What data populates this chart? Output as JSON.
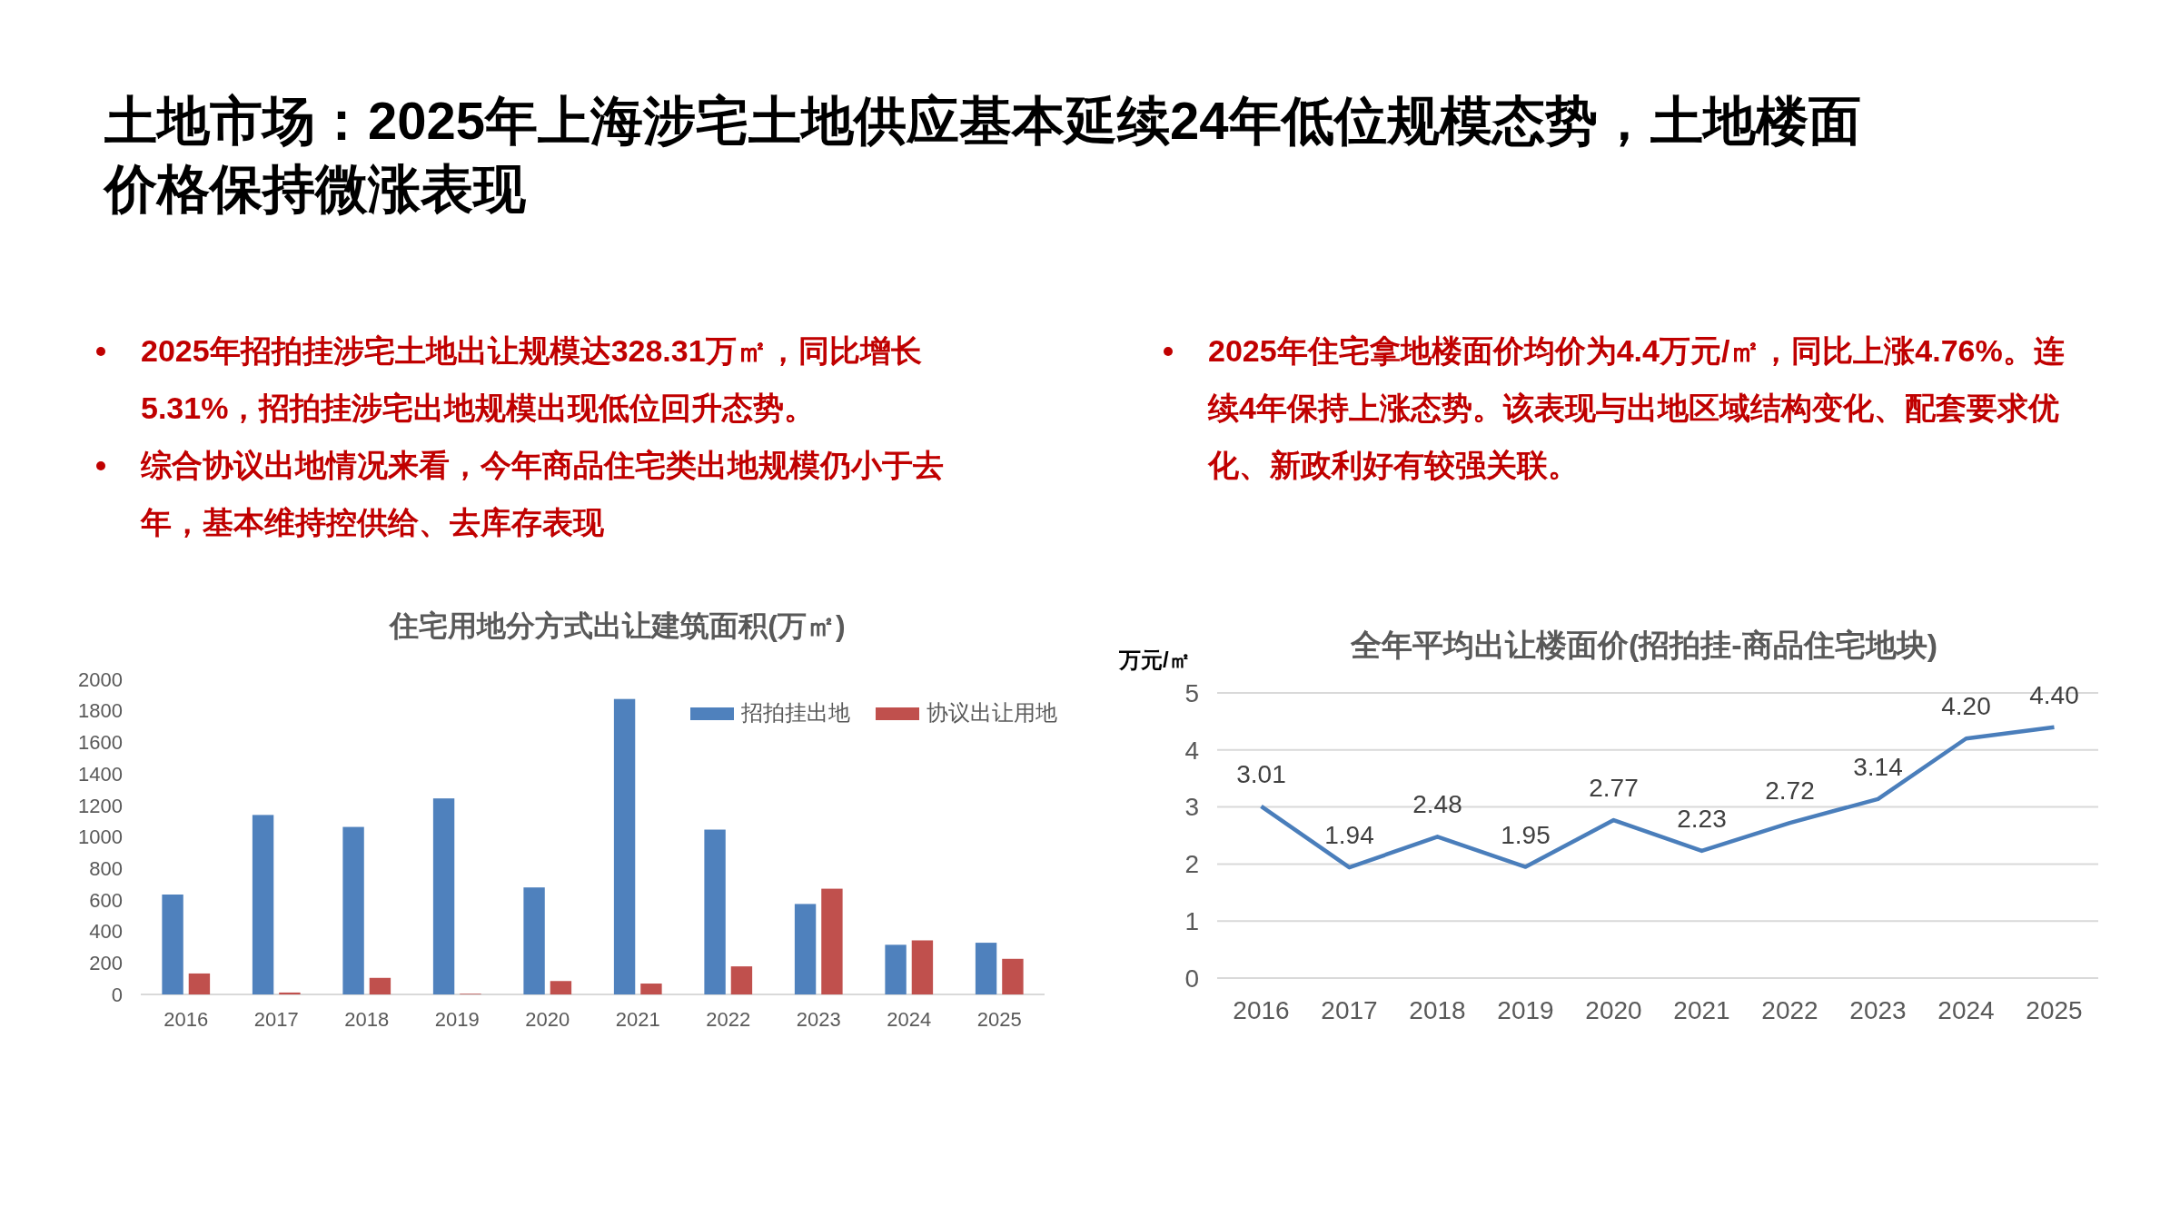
{
  "chart_data": [
    {
      "type": "other",
      "title": "土地市场：2025年上海涉宅土地供应基本延续24年低位规模态势，土地楼面价格保持微涨表现"
    },
    {
      "type": "other",
      "annotations": [
        "2025年招拍挂涉宅土地出让规模达328.31万㎡，同比增长5.31%，招拍挂涉宅出地规模出现低位回升态势。",
        "综合协议出地情况来看，今年商品住宅类出地规模仍小于去年，基本维持控供给、去库存表现"
      ]
    },
    {
      "type": "bar",
      "title": "住宅用地分方式出让建筑面积(万㎡)",
      "categories": [
        "2016",
        "2017",
        "2018",
        "2019",
        "2020",
        "2021",
        "2022",
        "2023",
        "2024",
        "2025"
      ],
      "series": [
        {
          "name": "招拍挂出地",
          "color": "#4f81bd",
          "values": [
            634,
            1139,
            1063,
            1244,
            679,
            1875,
            1046,
            574,
            315,
            328
          ]
        },
        {
          "name": "协议出让用地",
          "color": "#c0504d",
          "values": [
            133,
            12,
            105,
            4,
            85,
            69,
            178,
            671,
            343,
            226
          ]
        }
      ],
      "ylim": [
        0,
        2000
      ],
      "yticks": [
        0,
        200,
        400,
        600,
        800,
        1000,
        1200,
        1400,
        1600,
        1800,
        2000
      ],
      "grid": false,
      "legend": "top right"
    },
    {
      "type": "other",
      "annotations": [
        "2025年住宅拿地楼面价均价为4.4万元/㎡，同比上涨4.76%。连续4年保持上涨态势。该表现与出地区域结构变化、配套要求优化、新政利好有较强关联。"
      ]
    },
    {
      "type": "line",
      "title": "全年平均出让楼面价(招拍挂-商品住宅地块)",
      "ylabel": "万元/㎡",
      "categories": [
        "2016",
        "2017",
        "2018",
        "2019",
        "2020",
        "2021",
        "2022",
        "2023",
        "2024",
        "2025"
      ],
      "series": [
        {
          "color": "#4a7ebb",
          "values": [
            3.01,
            1.94,
            2.48,
            1.95,
            2.77,
            2.23,
            2.72,
            3.14,
            4.2,
            4.4
          ],
          "value_labels": [
            "3.01",
            "1.94",
            "2.48",
            "1.95",
            "2.77",
            "2.23",
            "2.72",
            "3.14",
            "4.20",
            "4.40"
          ]
        }
      ],
      "ylim": [
        0,
        5
      ],
      "yticks": [
        0,
        1,
        2,
        3,
        4,
        5
      ],
      "grid": "y",
      "legend": false,
      "marker": "none",
      "line_style": "solid"
    }
  ]
}
